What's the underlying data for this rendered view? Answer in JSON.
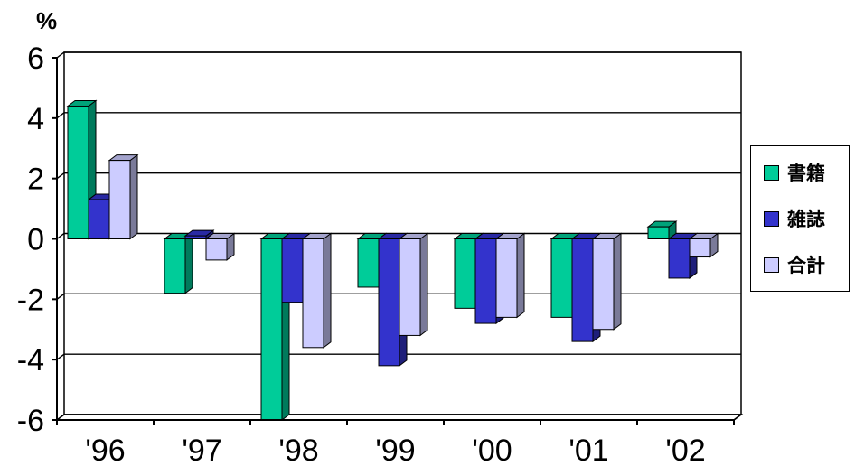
{
  "chart_data": {
    "type": "bar",
    "unit_label": "%",
    "categories": [
      "'96",
      "'97",
      "'98",
      "'99",
      "'00",
      "'01",
      "'02"
    ],
    "series": [
      {
        "name": "書籍",
        "color": "#00cc99",
        "values": [
          4.4,
          -1.8,
          -6.0,
          -1.6,
          -2.3,
          -2.6,
          0.4
        ]
      },
      {
        "name": "雑誌",
        "color": "#3333cc",
        "values": [
          1.3,
          0.1,
          -2.1,
          -4.2,
          -2.8,
          -3.4,
          -1.3
        ]
      },
      {
        "name": "合計",
        "color": "#ccccff",
        "values": [
          2.6,
          -0.7,
          -3.6,
          -3.2,
          -2.6,
          -3.0,
          -0.6
        ]
      }
    ],
    "y_ticks": [
      "6",
      "4",
      "2",
      "0",
      "-2",
      "-4",
      "-6"
    ],
    "ylim": [
      -6,
      6
    ],
    "grid": true,
    "legend_position": "right"
  }
}
